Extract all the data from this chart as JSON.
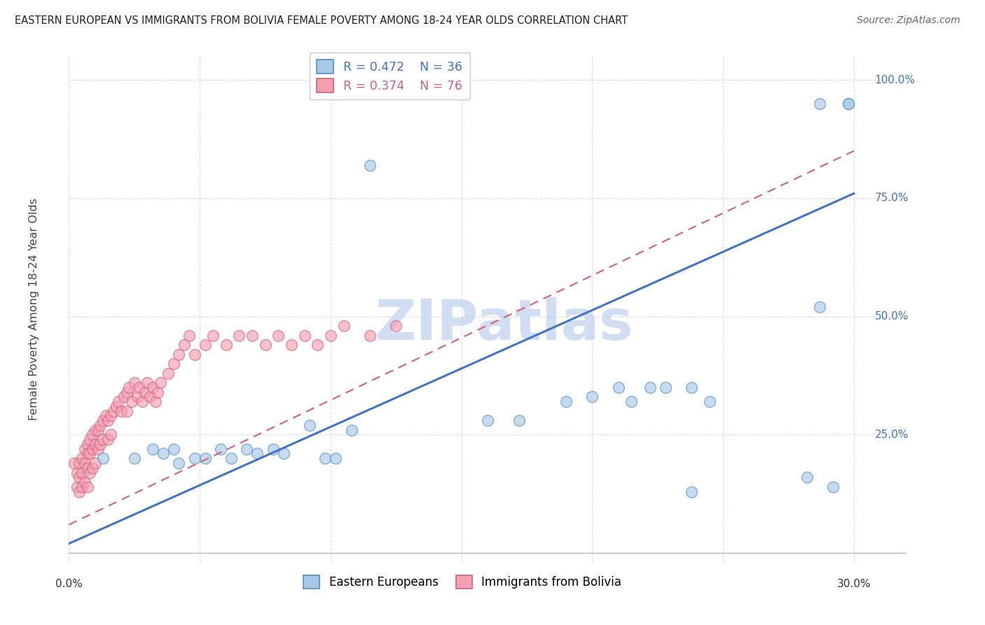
{
  "title": "EASTERN EUROPEAN VS IMMIGRANTS FROM BOLIVIA FEMALE POVERTY AMONG 18-24 YEAR OLDS CORRELATION CHART",
  "source": "Source: ZipAtlas.com",
  "ylabel": "Female Poverty Among 18-24 Year Olds",
  "xlim": [
    0.0,
    0.32
  ],
  "ylim": [
    -0.02,
    1.05
  ],
  "xticks": [
    0.0,
    0.05,
    0.1,
    0.15,
    0.2,
    0.25,
    0.3
  ],
  "ytick_positions": [
    0.0,
    0.25,
    0.5,
    0.75,
    1.0
  ],
  "ytick_labels": [
    "",
    "25.0%",
    "50.0%",
    "75.0%",
    "100.0%"
  ],
  "blue_R": 0.472,
  "blue_N": 36,
  "pink_R": 0.374,
  "pink_N": 76,
  "blue_color": "#a8c8e8",
  "pink_color": "#f4a0b0",
  "blue_edge_color": "#5090c0",
  "pink_edge_color": "#d06080",
  "blue_line_color": "#4472c4",
  "pink_line_color": "#d06080",
  "watermark": "ZIPatlas",
  "watermark_color": "#c8d8f0",
  "legend1_label": "Eastern Europeans",
  "legend2_label": "Immigrants from Bolivia",
  "blue_line_x0": 0.0,
  "blue_line_y0": 0.02,
  "blue_line_x1": 0.3,
  "blue_line_y1": 0.76,
  "pink_line_x0": 0.0,
  "pink_line_y0": 0.06,
  "pink_line_x1": 0.3,
  "pink_line_y1": 0.85,
  "blue_x": [
    0.115,
    0.013,
    0.025,
    0.032,
    0.036,
    0.04,
    0.042,
    0.048,
    0.052,
    0.058,
    0.062,
    0.068,
    0.072,
    0.078,
    0.082,
    0.092,
    0.098,
    0.102,
    0.108,
    0.16,
    0.172,
    0.19,
    0.2,
    0.21,
    0.215,
    0.222,
    0.228,
    0.238,
    0.238,
    0.245,
    0.282,
    0.287,
    0.287,
    0.292,
    0.298,
    0.298
  ],
  "blue_y": [
    0.82,
    0.2,
    0.2,
    0.22,
    0.21,
    0.22,
    0.19,
    0.2,
    0.2,
    0.22,
    0.2,
    0.22,
    0.21,
    0.22,
    0.21,
    0.27,
    0.2,
    0.2,
    0.26,
    0.28,
    0.28,
    0.32,
    0.33,
    0.35,
    0.32,
    0.35,
    0.35,
    0.35,
    0.13,
    0.32,
    0.16,
    0.95,
    0.52,
    0.14,
    0.95,
    0.95
  ],
  "pink_x": [
    0.002,
    0.003,
    0.003,
    0.004,
    0.004,
    0.004,
    0.005,
    0.005,
    0.005,
    0.006,
    0.006,
    0.006,
    0.007,
    0.007,
    0.007,
    0.007,
    0.008,
    0.008,
    0.008,
    0.009,
    0.009,
    0.009,
    0.01,
    0.01,
    0.01,
    0.011,
    0.011,
    0.012,
    0.012,
    0.013,
    0.013,
    0.014,
    0.015,
    0.015,
    0.016,
    0.016,
    0.017,
    0.018,
    0.019,
    0.02,
    0.021,
    0.022,
    0.022,
    0.023,
    0.024,
    0.025,
    0.026,
    0.027,
    0.028,
    0.029,
    0.03,
    0.031,
    0.032,
    0.033,
    0.034,
    0.035,
    0.038,
    0.04,
    0.042,
    0.044,
    0.046,
    0.048,
    0.052,
    0.055,
    0.06,
    0.065,
    0.07,
    0.075,
    0.08,
    0.085,
    0.09,
    0.095,
    0.1,
    0.105,
    0.115,
    0.125
  ],
  "pink_y": [
    0.19,
    0.17,
    0.14,
    0.19,
    0.16,
    0.13,
    0.2,
    0.17,
    0.14,
    0.22,
    0.19,
    0.15,
    0.23,
    0.21,
    0.18,
    0.14,
    0.24,
    0.21,
    0.17,
    0.25,
    0.22,
    0.18,
    0.26,
    0.23,
    0.19,
    0.26,
    0.22,
    0.27,
    0.23,
    0.28,
    0.24,
    0.29,
    0.28,
    0.24,
    0.29,
    0.25,
    0.3,
    0.31,
    0.32,
    0.3,
    0.33,
    0.34,
    0.3,
    0.35,
    0.32,
    0.36,
    0.33,
    0.35,
    0.32,
    0.34,
    0.36,
    0.33,
    0.35,
    0.32,
    0.34,
    0.36,
    0.38,
    0.4,
    0.42,
    0.44,
    0.46,
    0.42,
    0.44,
    0.46,
    0.44,
    0.46,
    0.46,
    0.44,
    0.46,
    0.44,
    0.46,
    0.44,
    0.46,
    0.48,
    0.46,
    0.48
  ],
  "background_color": "#ffffff",
  "grid_color": "#dddddd"
}
